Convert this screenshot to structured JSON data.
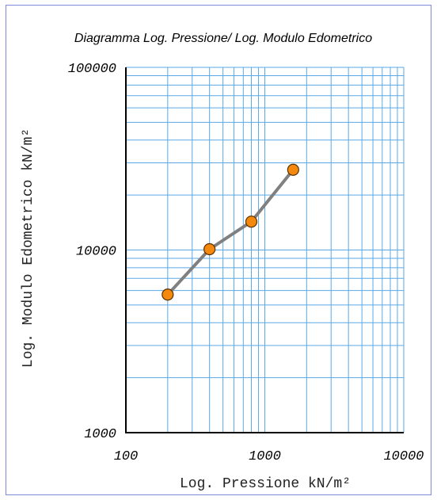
{
  "chart_data": {
    "type": "line",
    "title": "Diagramma Log. Pressione/ Log. Modulo Edometrico",
    "xlabel": "Log. Pressione kN/m²",
    "ylabel": "Log. Modulo Edometrico kN/m²",
    "x_scale": "log",
    "y_scale": "log",
    "xlim": [
      100,
      10000
    ],
    "ylim": [
      1000,
      100000
    ],
    "x_ticks": [
      "100",
      "1000",
      "10000"
    ],
    "y_ticks": [
      "100000",
      "10000",
      "1000"
    ],
    "grid": true,
    "series": [
      {
        "x": [
          200,
          400,
          800,
          1600
        ],
        "y": [
          5700,
          10100,
          14300,
          27500
        ]
      }
    ],
    "colors": {
      "grid": "#5aa9e6",
      "line": "#808080",
      "marker_fill": "#f5890d",
      "marker_stroke": "#5a3000",
      "frame": "#7d8ad6"
    }
  }
}
